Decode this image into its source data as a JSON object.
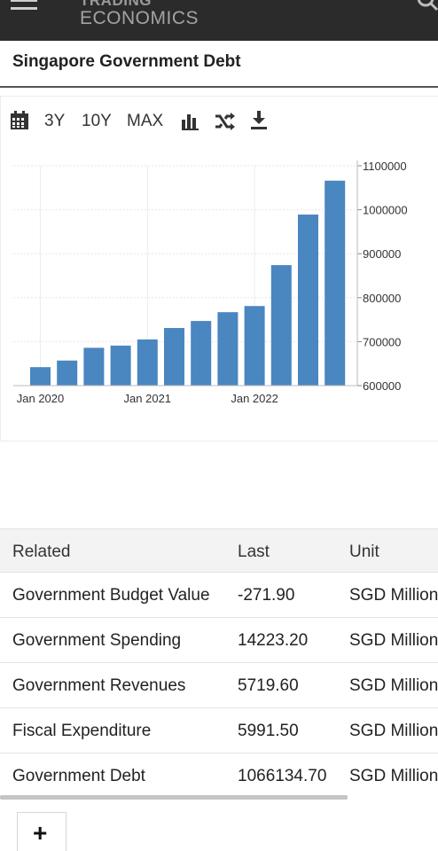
{
  "header": {
    "brand_line1": "TRADING",
    "brand_line2": "ECONOMICS"
  },
  "page": {
    "title": "Singapore Government Debt"
  },
  "toolbar": {
    "range_3y": "3Y",
    "range_10y": "10Y",
    "range_max": "MAX",
    "icons": [
      "calendar-icon",
      "bar-chart-icon",
      "shuffle-icon",
      "download-icon"
    ]
  },
  "chart_data": {
    "type": "bar",
    "x_tick_labels": [
      "Jan 2020",
      "Jan 2021",
      "Jan 2022"
    ],
    "values": [
      642000,
      657000,
      686000,
      691000,
      705000,
      731000,
      747000,
      767000,
      781000,
      874000,
      989000,
      1066134.7
    ],
    "ylim": [
      600000,
      1100000
    ],
    "y_ticks": [
      600000,
      700000,
      800000,
      900000,
      1000000,
      1100000
    ],
    "y_tick_labels": [
      "600000",
      "700000",
      "800000",
      "900000",
      "1000000",
      "1100000"
    ],
    "grid": true,
    "bar_color": "#4a86c0"
  },
  "related": {
    "columns": [
      "Related",
      "Last",
      "Unit"
    ],
    "rows": [
      {
        "name": "Government Budget Value",
        "last": "-271.90",
        "unit": "SGD Million"
      },
      {
        "name": "Government Spending",
        "last": "14223.20",
        "unit": "SGD Million"
      },
      {
        "name": "Government Revenues",
        "last": "5719.60",
        "unit": "SGD Million"
      },
      {
        "name": "Fiscal Expenditure",
        "last": "5991.50",
        "unit": "SGD Million"
      },
      {
        "name": "Government Debt",
        "last": "1066134.70",
        "unit": "SGD Million"
      }
    ]
  },
  "add_button": {
    "label": "+"
  }
}
